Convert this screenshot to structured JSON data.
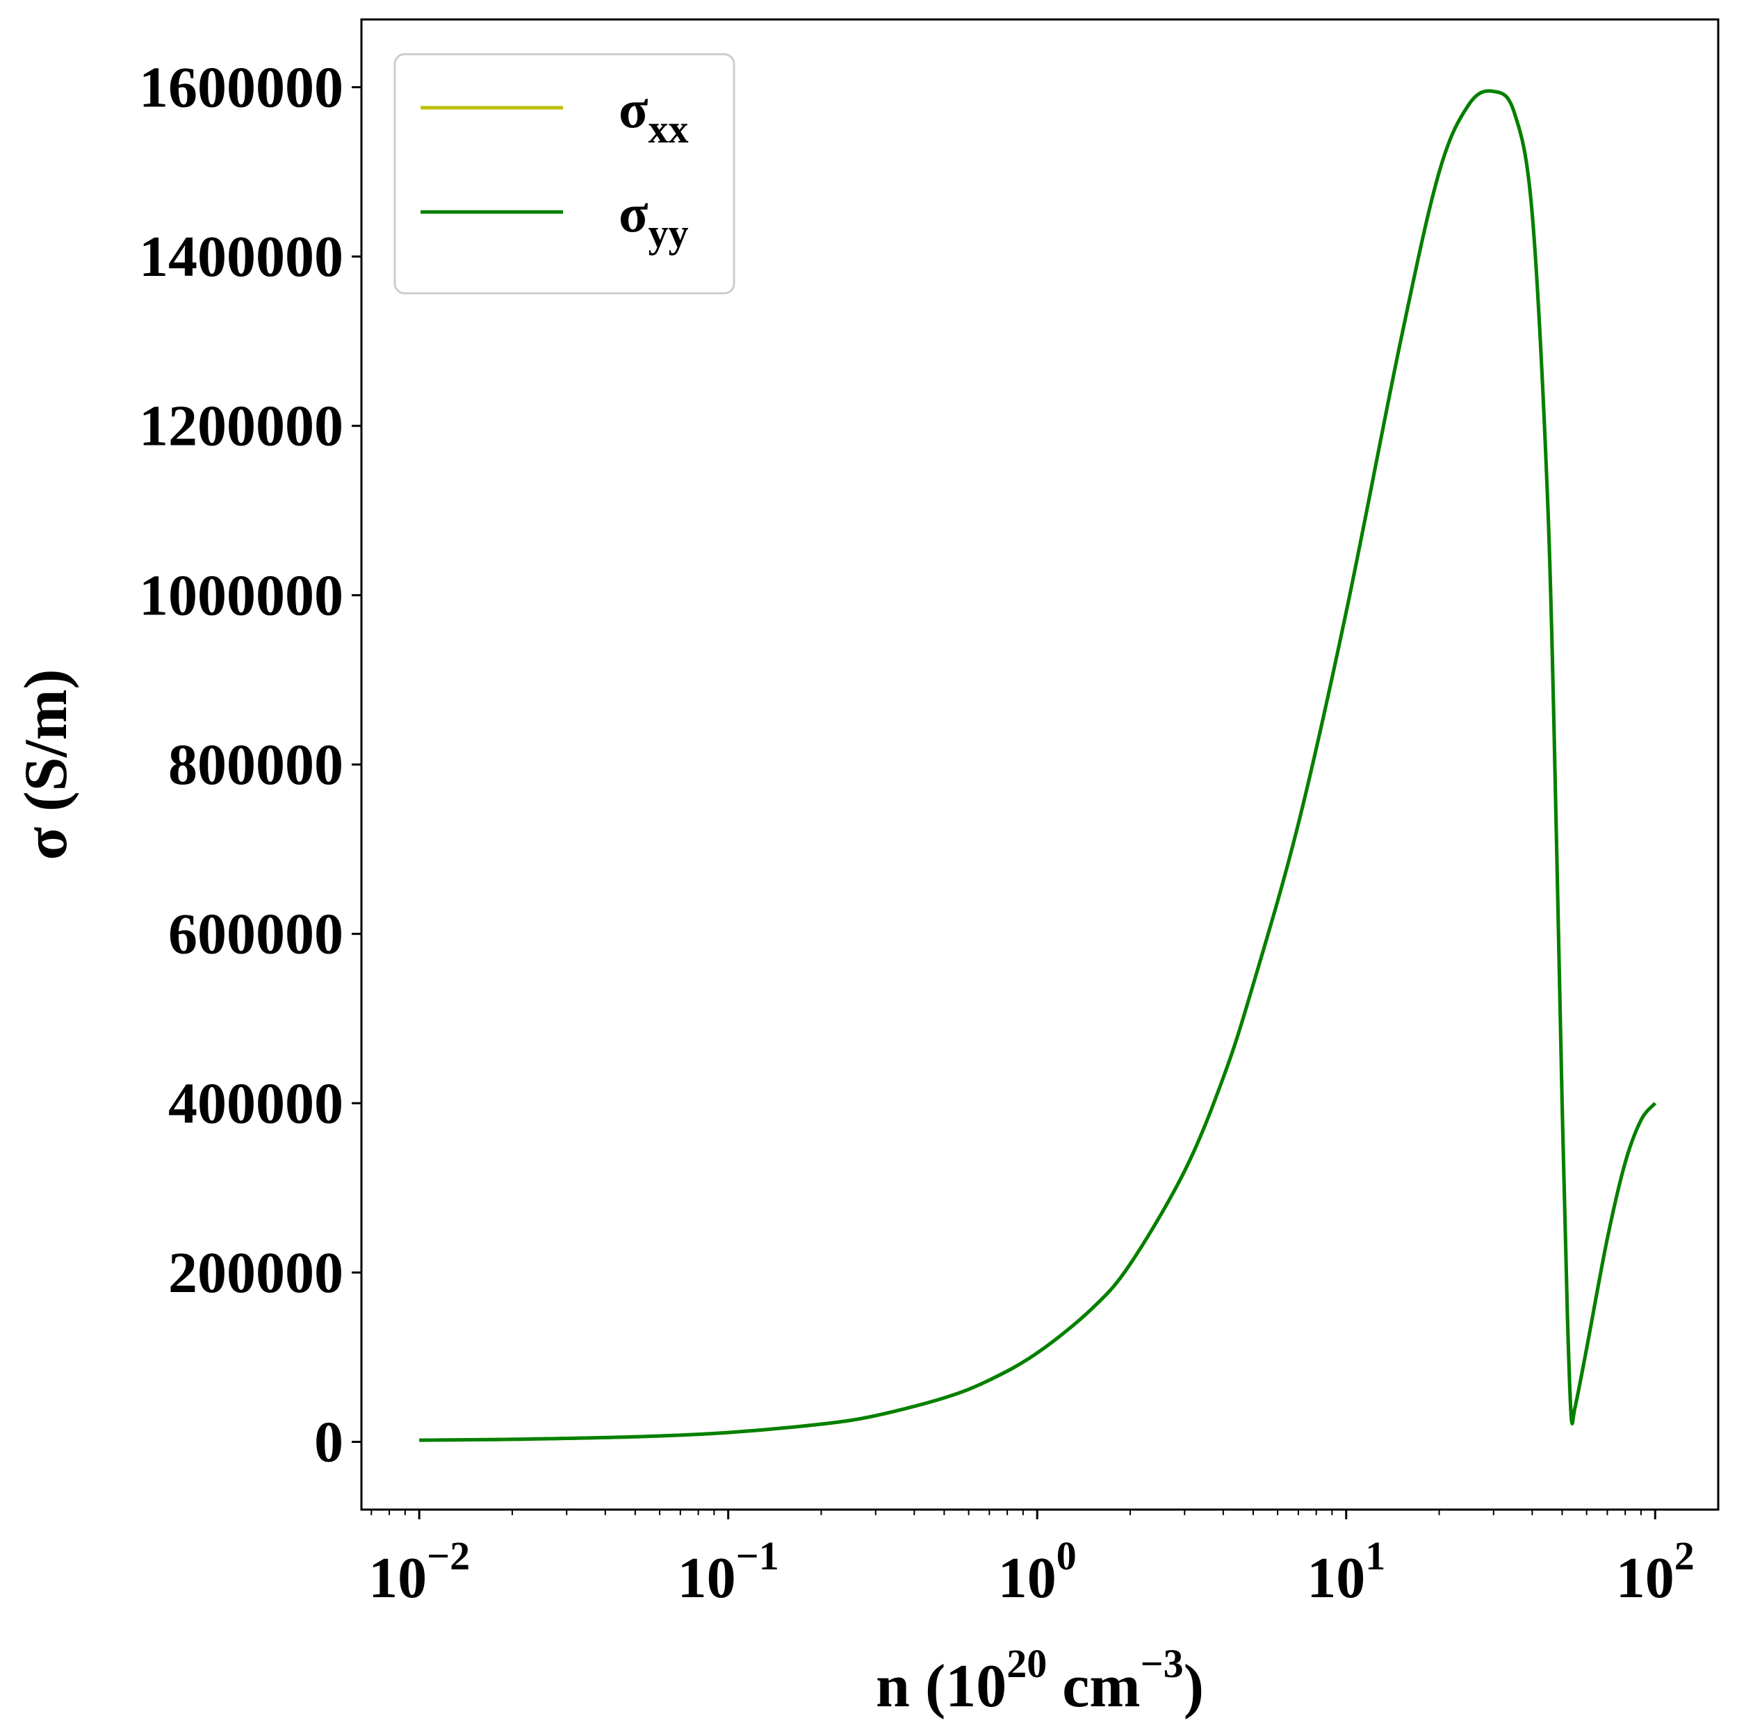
{
  "chart_data": {
    "type": "line",
    "title": "",
    "xlabel": {
      "base": "n (10",
      "exp": "20",
      "mid": " cm",
      "exp2": "−3",
      "tail": ")"
    },
    "ylabel": "σ (S/m)",
    "xscale": "log",
    "xlim": [
      0.0065,
      160
    ],
    "ylim": [
      -80000,
      1680000
    ],
    "grid": false,
    "legend": {
      "position": "top-left"
    },
    "y_ticks": [
      {
        "value": 0,
        "label": "0"
      },
      {
        "value": 200000,
        "label": "200000"
      },
      {
        "value": 400000,
        "label": "400000"
      },
      {
        "value": 600000,
        "label": "600000"
      },
      {
        "value": 800000,
        "label": "800000"
      },
      {
        "value": 1000000,
        "label": "1000000"
      },
      {
        "value": 1200000,
        "label": "1200000"
      },
      {
        "value": 1400000,
        "label": "1400000"
      },
      {
        "value": 1600000,
        "label": "1600000"
      }
    ],
    "x_ticks": [
      {
        "value": 0.01,
        "base": "10",
        "exp": "−2"
      },
      {
        "value": 0.1,
        "base": "10",
        "exp": "−1"
      },
      {
        "value": 1,
        "base": "10",
        "exp": "0"
      },
      {
        "value": 10,
        "base": "10",
        "exp": "1"
      },
      {
        "value": 100,
        "base": "10",
        "exp": "2"
      }
    ],
    "series": [
      {
        "name": {
          "base": "σ",
          "sub": "xx"
        },
        "color": "#bfbf00",
        "x": [
          0.01,
          0.02,
          0.05,
          0.1,
          0.2,
          0.3,
          0.5,
          0.7,
          1,
          1.5,
          2,
          3,
          4,
          5,
          7,
          10,
          15,
          20,
          25,
          30,
          35,
          40,
          45,
          48,
          50,
          52,
          53.5,
          55,
          60,
          70,
          80,
          90,
          100
        ],
        "y": [
          2000,
          3000,
          6000,
          11000,
          21000,
          31000,
          52000,
          73000,
          105000,
          157000,
          210000,
          320000,
          430000,
          540000,
          730000,
          980000,
          1300000,
          1500000,
          1580000,
          1595000,
          1570000,
          1450000,
          1100000,
          700000,
          400000,
          150000,
          30000,
          40000,
          110000,
          240000,
          330000,
          380000,
          400000
        ]
      },
      {
        "name": {
          "base": "σ",
          "sub": "yy"
        },
        "color": "#008000",
        "x": [
          0.01,
          0.02,
          0.05,
          0.1,
          0.2,
          0.3,
          0.5,
          0.7,
          1,
          1.5,
          2,
          3,
          4,
          5,
          7,
          10,
          15,
          20,
          25,
          30,
          35,
          40,
          45,
          48,
          50,
          52,
          53.5,
          55,
          60,
          70,
          80,
          90,
          100
        ],
        "y": [
          2000,
          3000,
          6000,
          11000,
          21000,
          31000,
          52000,
          73000,
          105000,
          157000,
          210000,
          320000,
          430000,
          540000,
          730000,
          980000,
          1300000,
          1500000,
          1580000,
          1595000,
          1570000,
          1450000,
          1100000,
          700000,
          400000,
          150000,
          30000,
          40000,
          110000,
          240000,
          330000,
          380000,
          400000
        ]
      }
    ]
  }
}
